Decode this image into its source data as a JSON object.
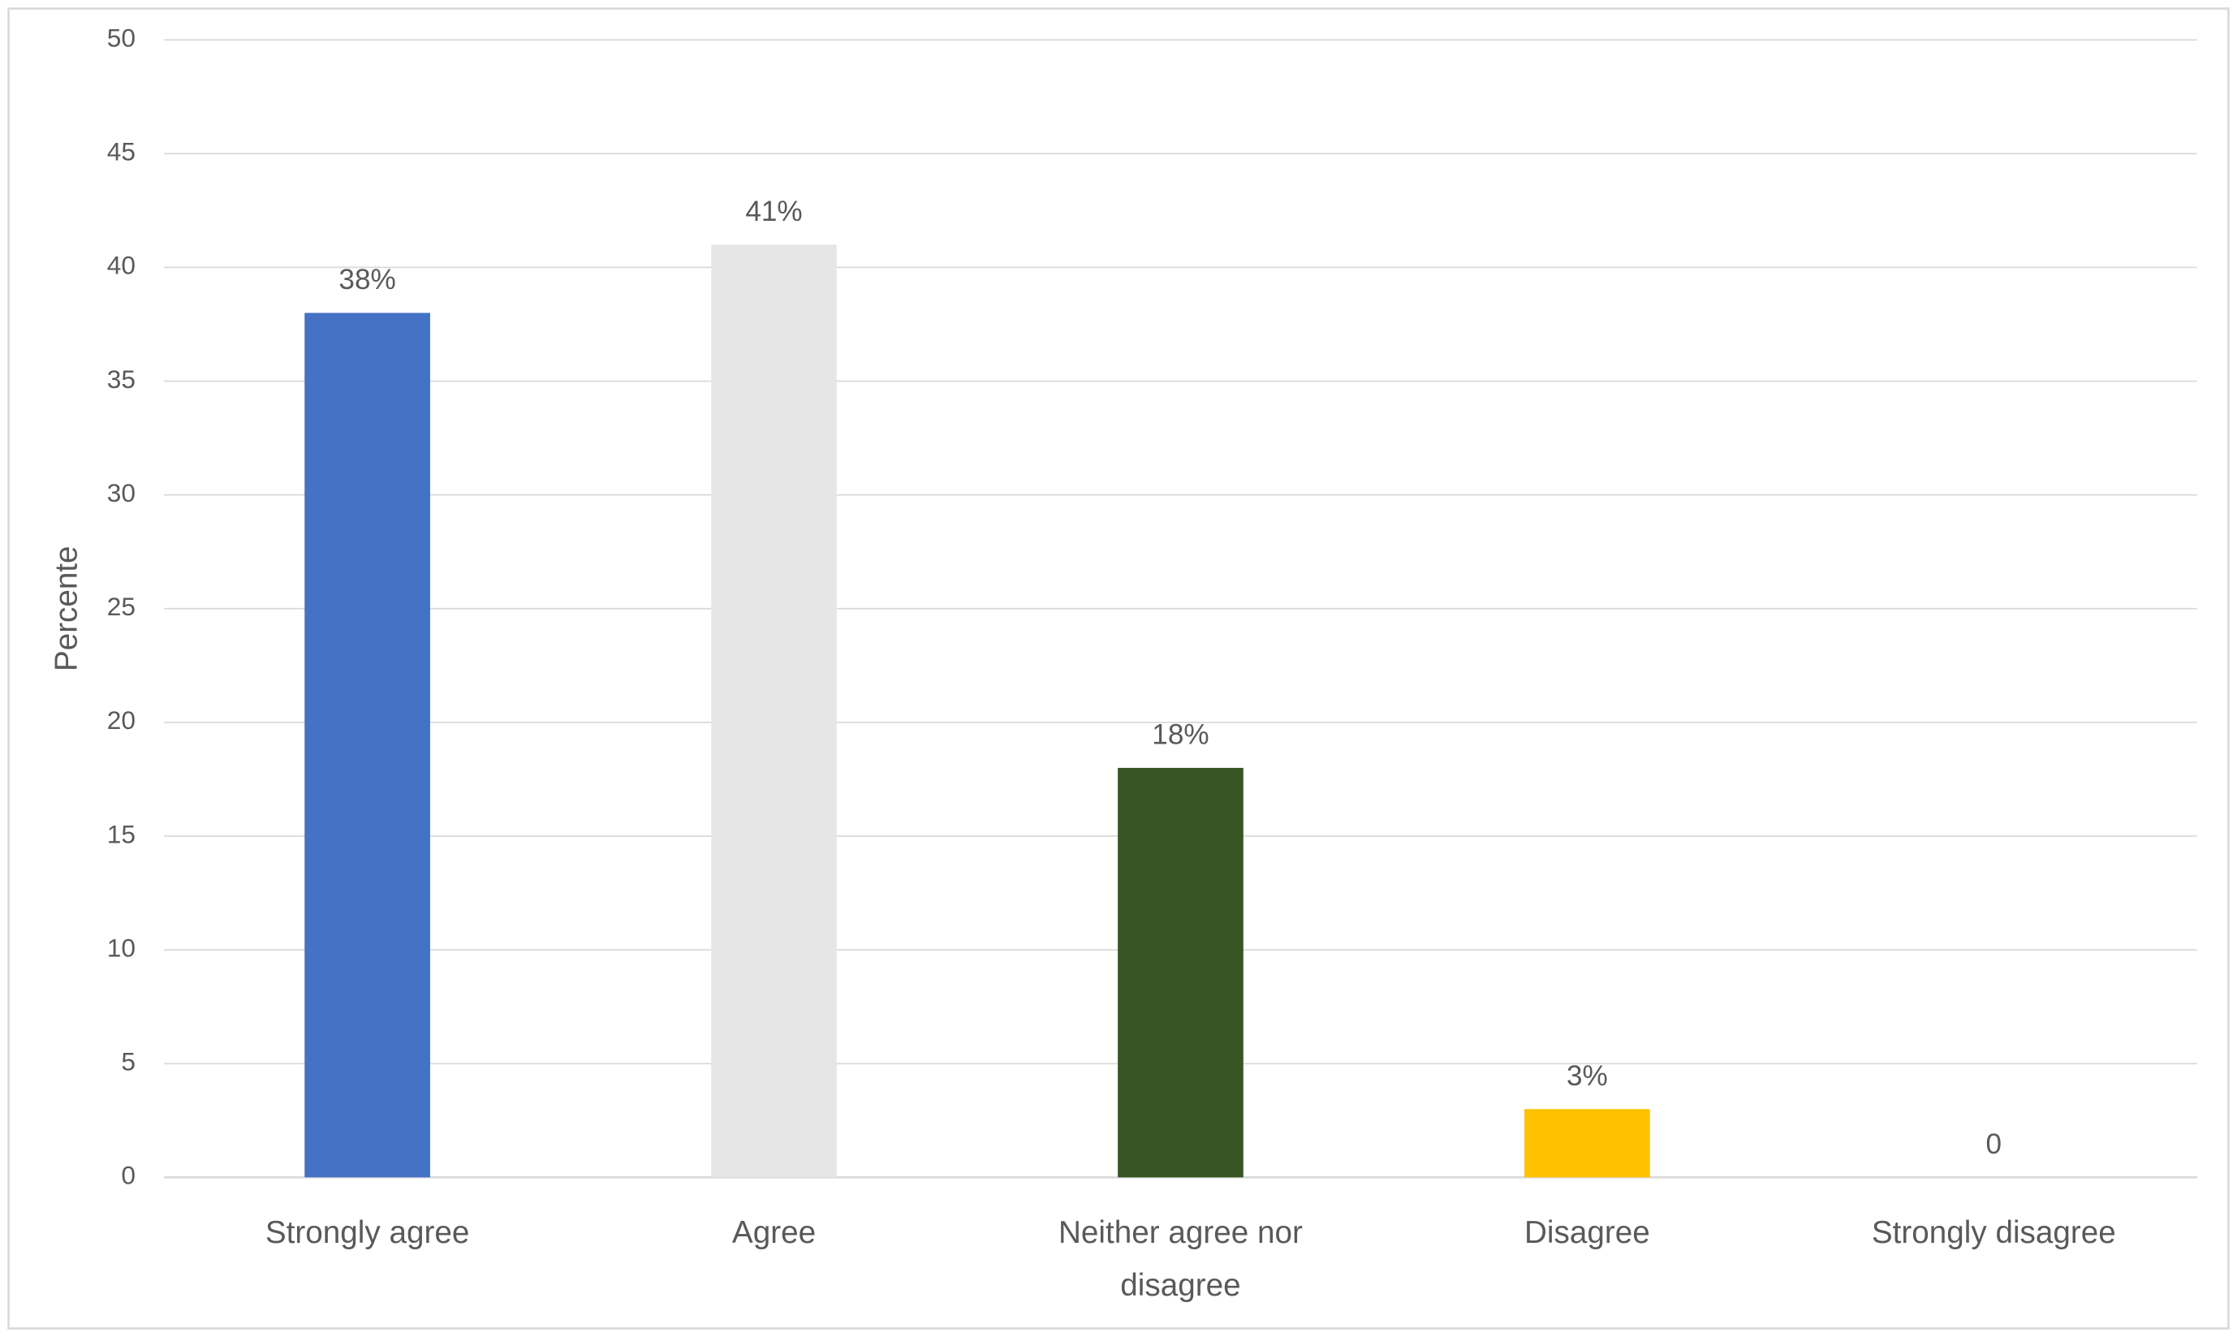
{
  "chart_data": {
    "type": "bar",
    "y_label": "Percente",
    "categories": [
      "Strongly agree",
      "Agree",
      "Neither agree nor disagree",
      "Disagree",
      "Strongly disagree"
    ],
    "values": [
      38,
      41,
      18,
      3,
      0
    ],
    "value_labels": [
      "38%",
      "41%",
      "18%",
      "3%",
      "0"
    ],
    "colors": [
      "#4472c4",
      "#e7e6e6",
      "#375623",
      "#ffc000",
      "#a5a5a5"
    ],
    "ylim": [
      0,
      50
    ],
    "yticks": [
      0,
      5,
      10,
      15,
      20,
      25,
      30,
      35,
      40,
      45,
      50
    ],
    "grid": true
  }
}
